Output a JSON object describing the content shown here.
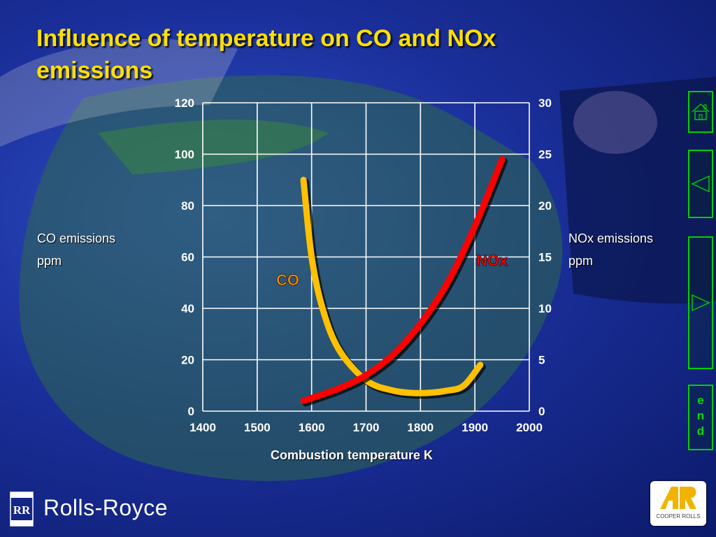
{
  "slide": {
    "title": "Influence of temperature on CO and NOx emissions",
    "left_axis_label": [
      "CO emissions",
      "ppm"
    ],
    "right_axis_label": [
      "NOx emissions",
      "ppm"
    ],
    "xlabel": "Combustion temperature K"
  },
  "footer": {
    "brand": "Rolls-Royce",
    "partner_logo": "COOPER ROLLS"
  },
  "nav": {
    "end_label": [
      "e",
      "n",
      "d"
    ],
    "icons": [
      "home-icon",
      "back-arrow-icon",
      "forward-arrow-icon"
    ]
  },
  "colors": {
    "title": "#ffe000",
    "co_curve": "#ffc000",
    "nox_curve": "#ff0000",
    "co_label": "#ff8c00",
    "nox_label": "#ff0000",
    "nav_border": "#00d000"
  },
  "chart_data": {
    "type": "line",
    "title": "Influence of temperature on CO and NOx emissions",
    "xlabel": "Combustion temperature K",
    "ylabel": "CO emissions ppm",
    "y2label": "NOx emissions ppm",
    "xlim": [
      1400,
      2000
    ],
    "ylim": [
      0,
      120
    ],
    "y2lim": [
      0,
      30
    ],
    "xticks": [
      "1400",
      "1500",
      "1600",
      "1700",
      "1800",
      "1900",
      "2000"
    ],
    "yticks": [
      "0",
      "20",
      "40",
      "60",
      "80",
      "100",
      "120"
    ],
    "y2ticks": [
      "0",
      "5",
      "10",
      "15",
      "20",
      "25",
      "30"
    ],
    "grid": true,
    "series": [
      {
        "name": "CO",
        "axis": "left",
        "x": [
          1585,
          1600,
          1620,
          1650,
          1700,
          1750,
          1800,
          1850,
          1880,
          1910
        ],
        "y": [
          90,
          60,
          40,
          24,
          12,
          8,
          7,
          8,
          10,
          18
        ]
      },
      {
        "name": "NOx",
        "axis": "right",
        "x": [
          1585,
          1650,
          1700,
          1750,
          1800,
          1850,
          1900,
          1950
        ],
        "y": [
          1,
          2.2,
          3.5,
          5.5,
          8.5,
          12.5,
          18,
          24.5
        ]
      }
    ]
  }
}
